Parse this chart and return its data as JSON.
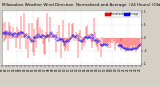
{
  "title_line1": "Milwaukee Weather Wind Direction",
  "title_line2": "Normalized and Average",
  "title_line3": "(24 Hours) (Old)",
  "bg_color": "#d4d0c8",
  "plot_bg": "#ffffff",
  "bar_color": "#ff0000",
  "avg_color": "#0000ff",
  "ylim": [
    -1.05,
    1.05
  ],
  "ytick_labels": [
    "1",
    ".5",
    "0",
    "-.5",
    "-1"
  ],
  "ytick_vals": [
    1.0,
    0.5,
    0.0,
    -0.5,
    -1.0
  ],
  "n_bars": 144,
  "seed": 7,
  "title_fontsize": 3.0,
  "tick_fontsize": 2.0,
  "legend_labels": [
    "Normalized",
    "Average"
  ],
  "legend_colors": [
    "#ff0000",
    "#0000ff"
  ],
  "grid_color": "#aaaaaa"
}
